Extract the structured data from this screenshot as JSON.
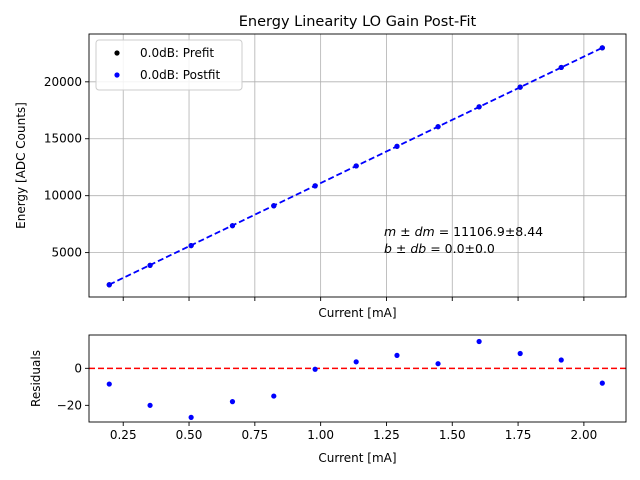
{
  "chart_data": [
    {
      "type": "scatter",
      "title": "Energy Linearity LO Gain Post-Fit",
      "xlabel": "Current [mA]",
      "ylabel": "Energy [ADC Counts]",
      "xlim": [
        0.12,
        2.16
      ],
      "ylim": [
        1100,
        24200
      ],
      "x_ticks": [
        0.25,
        0.5,
        0.75,
        1.0,
        1.25,
        1.5,
        1.75,
        2.0
      ],
      "x_ticklabels_shown": false,
      "y_ticks": [
        5000,
        10000,
        15000,
        20000
      ],
      "y_ticklabels": [
        "5000",
        "10000",
        "15000",
        "20000"
      ],
      "grid": true,
      "legend_position": "top-left",
      "series": [
        {
          "name": "0.0dB: Prefit",
          "marker_color": "#000000",
          "x": [
            0.197,
            0.352,
            0.508,
            0.665,
            0.822,
            0.979,
            1.135,
            1.29,
            1.446,
            1.602,
            1.758,
            1.914,
            2.07
          ],
          "y": [
            2175,
            3885,
            5615,
            7365,
            9115,
            10860,
            12610,
            14335,
            16060,
            17805,
            19535,
            21265,
            22985
          ]
        },
        {
          "name": "0.0dB: Postfit",
          "marker_color": "#0000ff",
          "x": [
            0.197,
            0.352,
            0.508,
            0.665,
            0.822,
            0.979,
            1.135,
            1.29,
            1.446,
            1.602,
            1.758,
            1.914,
            2.07
          ],
          "y": [
            2175,
            3885,
            5615,
            7365,
            9115,
            10860,
            12610,
            14335,
            16060,
            17805,
            19535,
            21265,
            22985
          ]
        }
      ],
      "fit_line": {
        "color": "#0000ff",
        "style": "dashed",
        "slope": 11106.9,
        "intercept": 0.0,
        "x_range": [
          0.197,
          2.07
        ]
      },
      "annotation": {
        "line1_math": "m ± dm",
        "line1_value": " = 11106.9±8.44",
        "line2_math": "b ± db",
        "line2_value": " = 0.0±0.0"
      }
    },
    {
      "type": "scatter",
      "xlabel": "Current [mA]",
      "ylabel": "Residuals",
      "xlim": [
        0.12,
        2.16
      ],
      "ylim": [
        -29,
        18
      ],
      "x_ticks": [
        0.25,
        0.5,
        0.75,
        1.0,
        1.25,
        1.5,
        1.75,
        2.0
      ],
      "x_ticklabels": [
        "0.25",
        "0.50",
        "0.75",
        "1.00",
        "1.25",
        "1.50",
        "1.75",
        "2.00"
      ],
      "y_ticks": [
        -20,
        0
      ],
      "y_ticklabels": [
        "−20",
        "0"
      ],
      "grid": false,
      "zero_line": {
        "color": "#ff0000",
        "style": "dashed",
        "y": 0
      },
      "series": [
        {
          "marker_color": "#0000ff",
          "x": [
            0.197,
            0.352,
            0.508,
            0.665,
            0.822,
            0.979,
            1.135,
            1.29,
            1.446,
            1.602,
            1.758,
            1.914,
            2.07
          ],
          "y": [
            -8.5,
            -20,
            -26.5,
            -18,
            -15,
            -0.5,
            3.5,
            7,
            2.5,
            14.5,
            8,
            4.5,
            -8
          ]
        }
      ]
    }
  ]
}
